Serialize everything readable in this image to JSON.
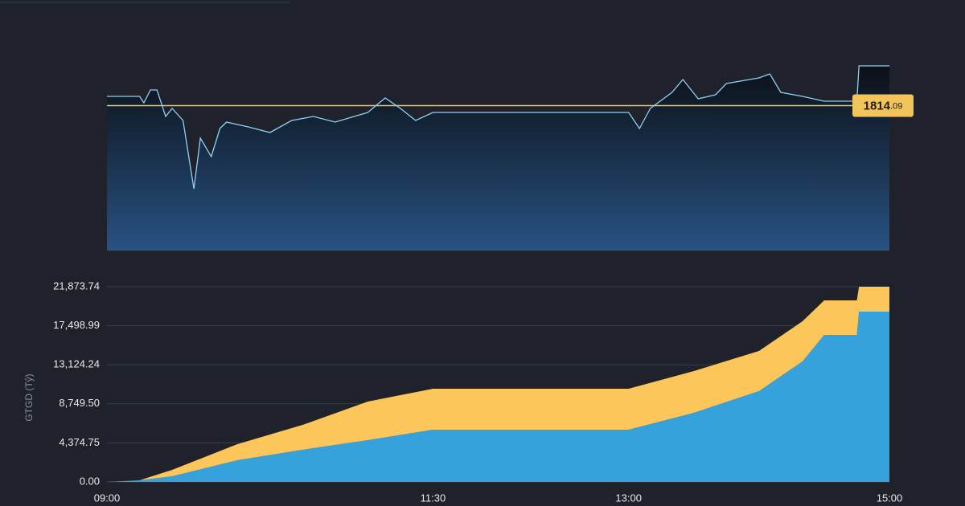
{
  "chart_data": [
    {
      "type": "line",
      "x": [
        "09:00",
        "09:15",
        "09:17",
        "09:20",
        "09:23",
        "09:27",
        "09:30",
        "09:35",
        "09:40",
        "09:43",
        "09:48",
        "09:52",
        "09:55",
        "10:05",
        "10:15",
        "10:25",
        "10:35",
        "10:45",
        "11:00",
        "11:08",
        "11:15",
        "11:22",
        "11:30",
        "13:00",
        "13:05",
        "13:10",
        "13:20",
        "13:25",
        "13:32",
        "13:40",
        "13:45",
        "14:00",
        "14:05",
        "14:10",
        "14:20",
        "14:30",
        "14:45",
        "14:46",
        "15:00"
      ],
      "values": [
        1817.09,
        1817.09,
        1815.0,
        1819.17,
        1819.17,
        1810.57,
        1813.17,
        1809.26,
        1787.09,
        1803.52,
        1797.52,
        1806.65,
        1808.74,
        1807.17,
        1805.35,
        1809.26,
        1810.57,
        1808.74,
        1811.87,
        1816.57,
        1813.17,
        1809.26,
        1811.87,
        1811.87,
        1806.65,
        1813.17,
        1818.39,
        1822.57,
        1816.3,
        1817.61,
        1821.26,
        1823.09,
        1824.39,
        1818.39,
        1817.09,
        1815.52,
        1815.52,
        1827.0,
        1827.0
      ],
      "color": "#8fd0f5",
      "xlim": [
        "09:00",
        "15:00"
      ],
      "ylim": [
        1767,
        1827
      ],
      "reference": {
        "value": 1814.09,
        "label": "1814.09",
        "color": "#f2c45a"
      }
    },
    {
      "type": "stacked_area",
      "x": [
        "09:00",
        "09:15",
        "09:30",
        "10:00",
        "10:30",
        "11:00",
        "11:30",
        "13:00",
        "13:30",
        "14:00",
        "14:20",
        "14:30",
        "14:45",
        "14:46",
        "15:00"
      ],
      "series": [
        {
          "color": "#36a2dc",
          "values": [
            0,
            180,
            630,
            2430,
            3600,
            4680,
            5850,
            5850,
            7740,
            10170,
            13500,
            16470,
            16470,
            19080,
            19080
          ]
        },
        {
          "color": "#fdc65a",
          "values": [
            0,
            0,
            720,
            1800,
            2790,
            4320,
            4590,
            4590,
            4680,
            4500,
            4500,
            3870,
            3870,
            2790,
            2790
          ]
        }
      ],
      "xlim": [
        "09:00",
        "15:00"
      ],
      "xticks": [
        "09:00",
        "11:30",
        "13:00",
        "15:00"
      ],
      "ylim": [
        0,
        21873.74
      ],
      "yticks": [
        {
          "value": 0,
          "label": "0.00"
        },
        {
          "value": 4374.75,
          "label": "4,374.75"
        },
        {
          "value": 8749.5,
          "label": "8,749.50"
        },
        {
          "value": 13124.24,
          "label": "13,124.24"
        },
        {
          "value": 17498.99,
          "label": "17,498.99"
        },
        {
          "value": 21873.74,
          "label": "21,873.74"
        }
      ],
      "ylabel": "GTGD (Tỷ)",
      "grid": true
    }
  ]
}
